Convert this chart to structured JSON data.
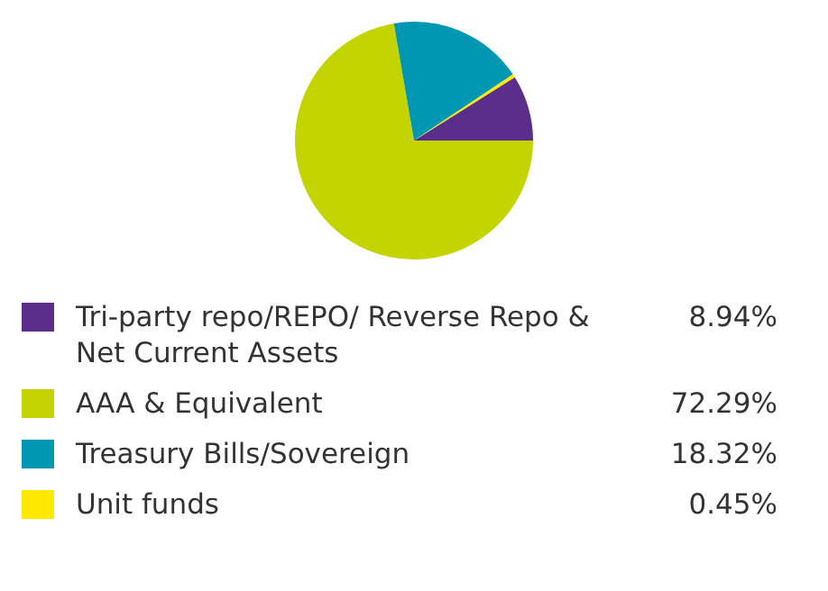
{
  "chart_data": {
    "type": "pie",
    "categories": [
      "Tri-party repo/REPO/ Reverse Repo & Net Current Assets",
      "AAA & Equivalent",
      "Treasury Bills/Sovereign",
      "Unit funds"
    ],
    "values": [
      8.94,
      72.29,
      18.32,
      0.45
    ],
    "colors": [
      "#5b2e8c",
      "#c4d400",
      "#0097b2",
      "#ffe800"
    ],
    "value_labels": [
      "8.94%",
      "72.29%",
      "18.32%",
      "0.45%"
    ],
    "legend": "bottom"
  }
}
